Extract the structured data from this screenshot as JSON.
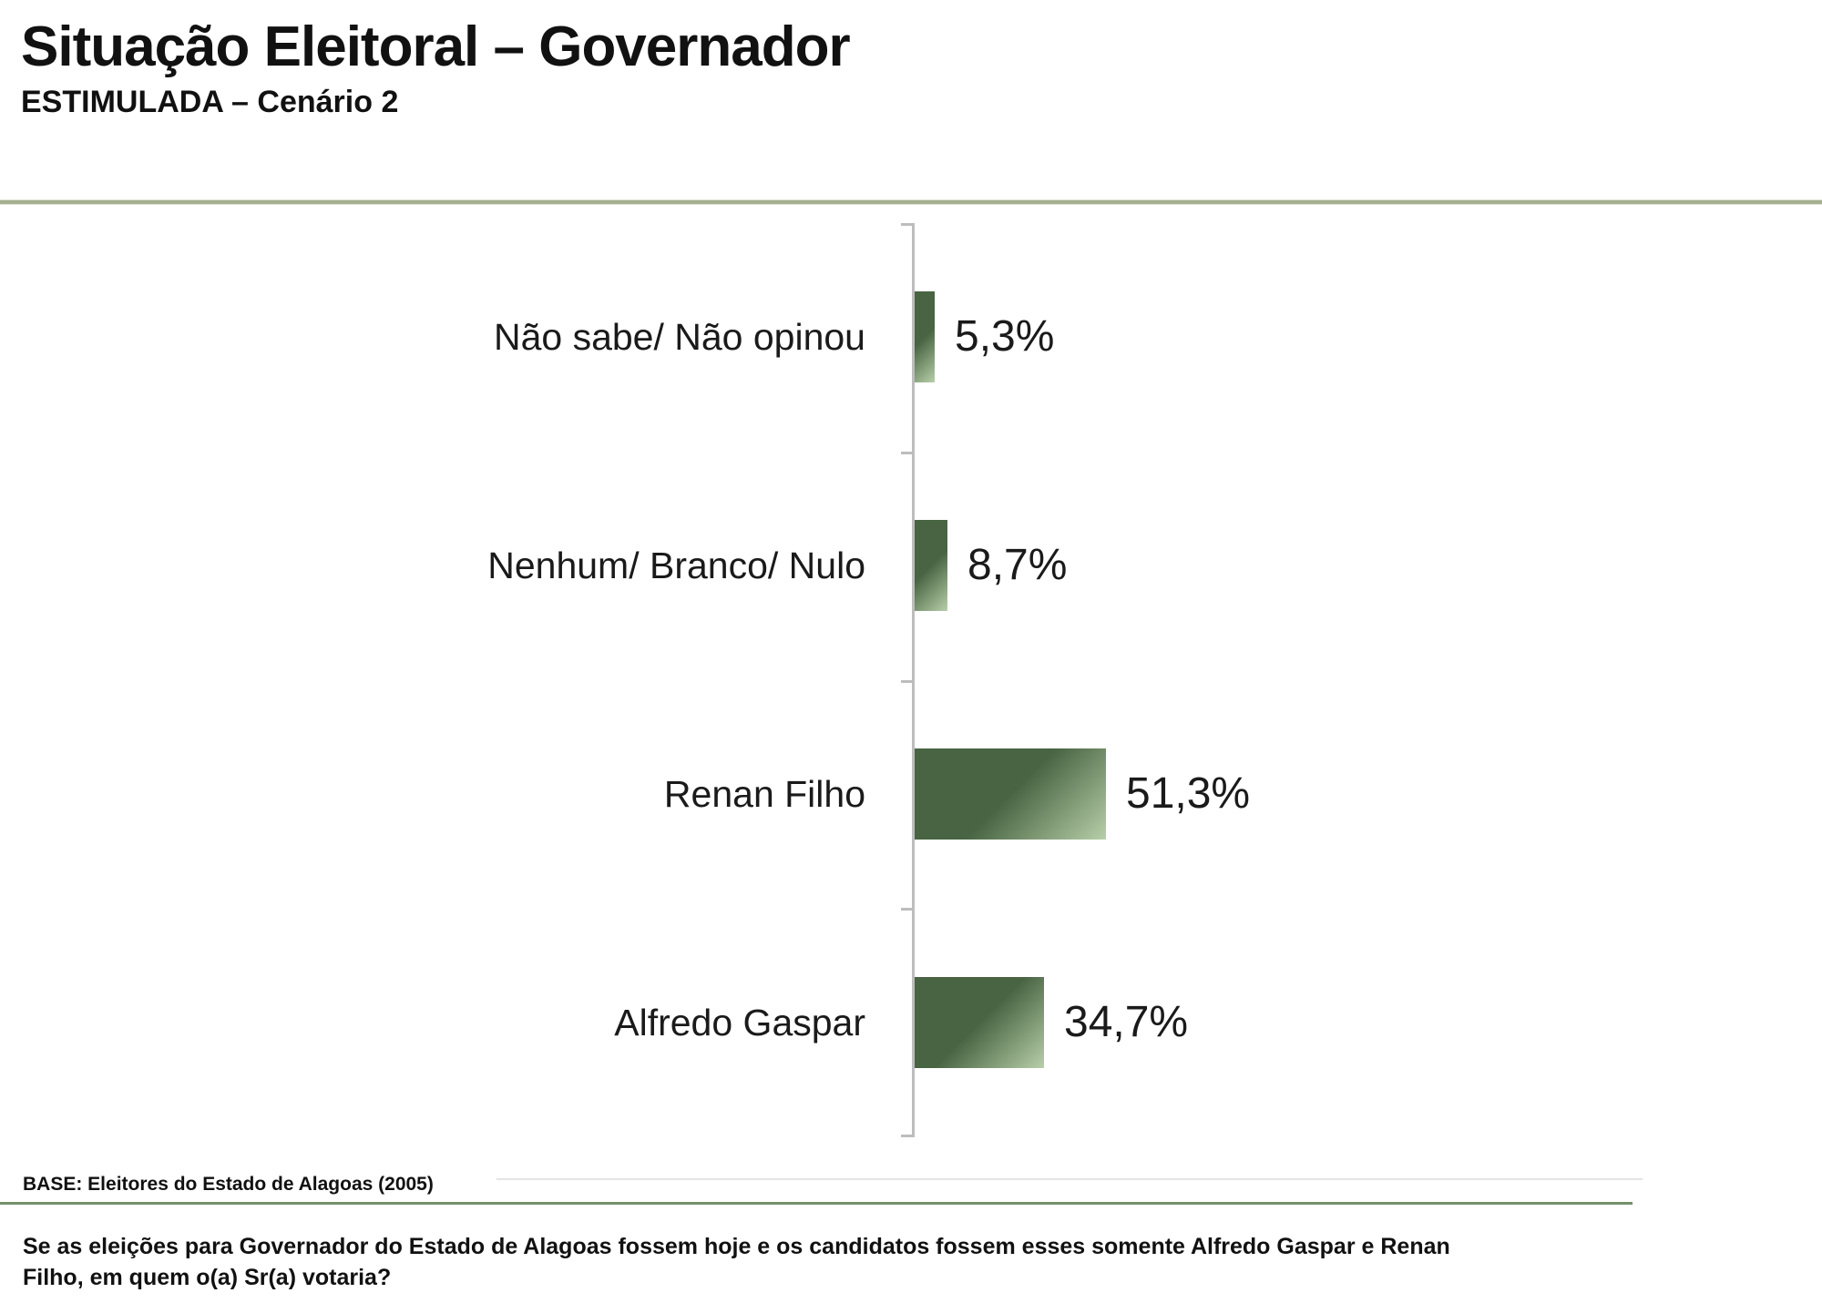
{
  "header": {
    "title": "Situação Eleitoral – Governador",
    "subtitle": "ESTIMULADA – Cenário 2"
  },
  "chart_data": {
    "type": "bar",
    "orientation": "horizontal",
    "categories": [
      "Não sabe/ Não opinou",
      "Nenhum/ Branco/ Nulo",
      "Renan Filho",
      "Alfredo Gaspar"
    ],
    "values": [
      5.3,
      8.7,
      51.3,
      34.7
    ],
    "value_labels": [
      "5,3%",
      "8,7%",
      "51,3%",
      "34,7%"
    ],
    "value_unit": "%",
    "xlim": [
      0,
      100
    ],
    "grid": "off",
    "legend": "none",
    "axis": "single vertical baseline with end caps and category boundary ticks"
  },
  "footer": {
    "base_note": "BASE: Eleitores do Estado de Alagoas (2005)",
    "question_lines": [
      "Se as eleições para Governador do Estado de Alagoas fossem hoje e os candidatos fossem esses somente Alfredo Gaspar e Renan",
      "Filho, em quem o(a) Sr(a) votaria?"
    ]
  },
  "colors": {
    "bar_dark": "#486442",
    "bar_light": "#b7cfa9",
    "axis": "#bdbdbd",
    "rule_top": "#a5ae91",
    "rule_bottom": "#73906a",
    "text": "#1a1a1a"
  }
}
